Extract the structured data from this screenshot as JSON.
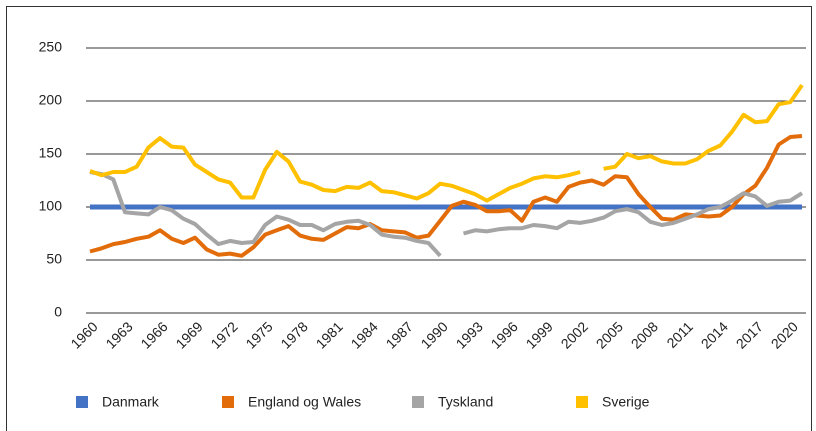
{
  "chart_data": {
    "type": "line",
    "x": [
      1960,
      1961,
      1962,
      1963,
      1964,
      1965,
      1966,
      1967,
      1968,
      1969,
      1970,
      1971,
      1972,
      1973,
      1974,
      1975,
      1976,
      1977,
      1978,
      1979,
      1980,
      1981,
      1982,
      1983,
      1984,
      1985,
      1986,
      1987,
      1988,
      1989,
      1990,
      1991,
      1992,
      1993,
      1994,
      1995,
      1996,
      1997,
      1998,
      1999,
      2000,
      2001,
      2002,
      2003,
      2004,
      2005,
      2006,
      2007,
      2008,
      2009,
      2010,
      2011,
      2012,
      2013,
      2014,
      2015,
      2016,
      2017,
      2018,
      2019,
      2020,
      2021
    ],
    "xlim": [
      1960,
      2021
    ],
    "xticks": [
      1960,
      1963,
      1966,
      1969,
      1972,
      1975,
      1978,
      1981,
      1984,
      1987,
      1990,
      1993,
      1996,
      1999,
      2002,
      2005,
      2008,
      2011,
      2014,
      2017,
      2020
    ],
    "ylim": [
      0,
      250
    ],
    "yticks": [
      0,
      50,
      100,
      150,
      200,
      250
    ],
    "grid": true,
    "legend": "bottom",
    "series": [
      {
        "name": "Danmark",
        "color": "#4472c4",
        "values": [
          100,
          100,
          100,
          100,
          100,
          100,
          100,
          100,
          100,
          100,
          100,
          100,
          100,
          100,
          100,
          100,
          100,
          100,
          100,
          100,
          100,
          100,
          100,
          100,
          100,
          100,
          100,
          100,
          100,
          100,
          100,
          100,
          100,
          100,
          100,
          100,
          100,
          100,
          100,
          100,
          100,
          100,
          100,
          100,
          100,
          100,
          100,
          100,
          100,
          100,
          100,
          100,
          100,
          100,
          100,
          100,
          100,
          100,
          100,
          100,
          100,
          100
        ]
      },
      {
        "name": "England og Wales",
        "color": "#e36c0a",
        "values": [
          58,
          61,
          65,
          67,
          70,
          72,
          78,
          70,
          66,
          71,
          60,
          55,
          56,
          54,
          62,
          74,
          78,
          82,
          73,
          70,
          69,
          75,
          81,
          80,
          84,
          78,
          77,
          76,
          71,
          73,
          87,
          101,
          105,
          102,
          96,
          96,
          97,
          87,
          105,
          109,
          105,
          119,
          123,
          125,
          121,
          129,
          128,
          112,
          100,
          89,
          88,
          93,
          92,
          91,
          92,
          100,
          112,
          120,
          137,
          159,
          166,
          167
        ]
      },
      {
        "name": "Tyskland",
        "color": "#a5a5a5",
        "values": [
          133,
          131,
          126,
          95,
          94,
          93,
          100,
          97,
          89,
          84,
          74,
          65,
          68,
          66,
          67,
          83,
          91,
          88,
          83,
          83,
          78,
          84,
          86,
          87,
          83,
          74,
          72,
          71,
          68,
          66,
          54,
          null,
          75,
          78,
          77,
          79,
          80,
          80,
          83,
          82,
          80,
          86,
          85,
          87,
          90,
          96,
          98,
          95,
          86,
          83,
          85,
          89,
          93,
          98,
          100,
          106,
          113,
          110,
          101,
          105,
          106,
          113
        ]
      },
      {
        "name": "Sverige",
        "color": "#ffc000",
        "values": [
          134,
          130,
          133,
          133,
          138,
          156,
          165,
          157,
          156,
          140,
          133,
          126,
          123,
          109,
          109,
          135,
          152,
          143,
          124,
          121,
          116,
          115,
          119,
          118,
          123,
          115,
          114,
          111,
          108,
          113,
          122,
          120,
          116,
          112,
          106,
          112,
          118,
          122,
          127,
          129,
          128,
          130,
          133,
          null,
          136,
          138,
          150,
          146,
          148,
          143,
          141,
          141,
          145,
          153,
          158,
          171,
          187,
          180,
          181,
          197,
          199,
          215
        ]
      }
    ]
  }
}
